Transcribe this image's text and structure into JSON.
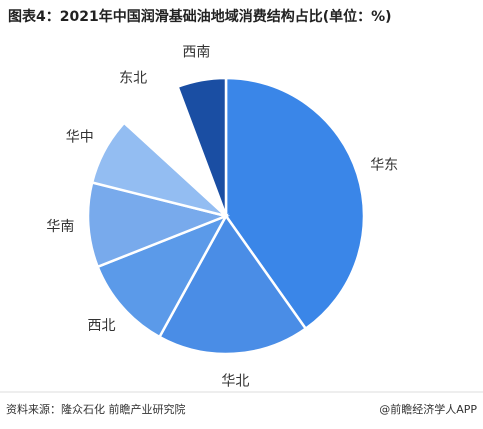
{
  "chart_data": {
    "type": "pie",
    "title": "图表4：2021年中国润滑基础油地域消费结构占比(单位：%)",
    "categories": [
      "华东",
      "华北",
      "西北",
      "华南",
      "华中",
      "东北",
      "西南"
    ],
    "values": [
      40.2,
      17.8,
      11,
      9.9,
      7.9,
      7.5,
      5.7
    ],
    "colors": [
      "#3a86e8",
      "#4a8de6",
      "#5b9ae9",
      "#78aaec",
      "#93bdf2",
      "#ffffff",
      "#1a4ea3"
    ],
    "source": "资料来源：隆众石化 前瞻产业研究院",
    "credit": "@前瞻经济学人APP"
  }
}
